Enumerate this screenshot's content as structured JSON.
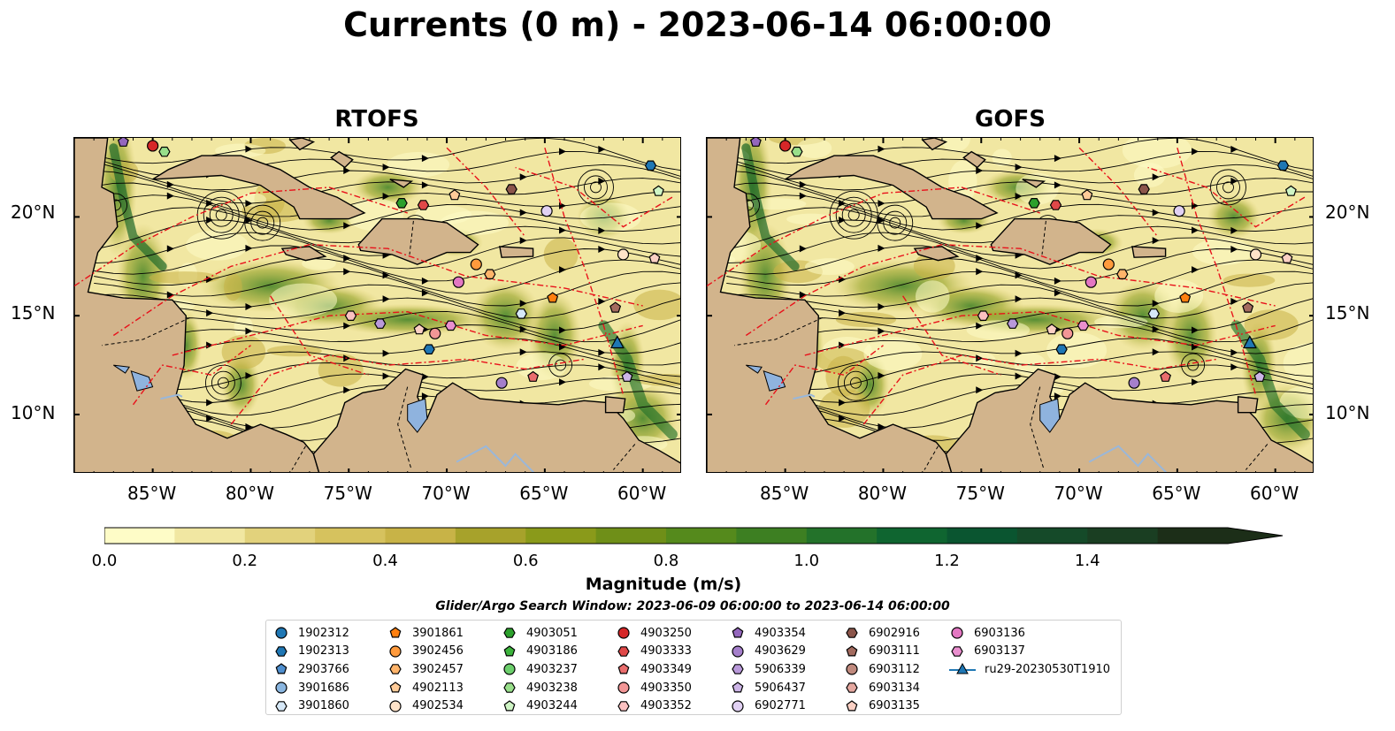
{
  "title": "Currents (0 m) - 2023-06-14 06:00:00",
  "panels": [
    {
      "title": "RTOFS"
    },
    {
      "title": "GOFS"
    }
  ],
  "map_axes": {
    "lon_range": [
      -89,
      -58
    ],
    "lat_range": [
      7,
      24
    ],
    "lat_ticks": [
      "20°N",
      "15°N",
      "10°N"
    ],
    "lon_ticks": [
      "85°W",
      "80°W",
      "75°W",
      "70°W",
      "65°W",
      "60°W"
    ]
  },
  "colorbar": {
    "label": "Magnitude (m/s)",
    "ticks": [
      "0.0",
      "0.2",
      "0.4",
      "0.6",
      "0.8",
      "1.0",
      "1.2",
      "1.4"
    ],
    "range": [
      0,
      1.6
    ],
    "extend": "max",
    "colors": [
      "#fefcc7",
      "#f1e7a2",
      "#e2d27c",
      "#d6c25e",
      "#c8b347",
      "#a7a22b",
      "#8a9a1a",
      "#6f8f18",
      "#558a1c",
      "#3d7f22",
      "#23722a",
      "#0f6530",
      "#0a5530",
      "#154a29",
      "#1a3e22",
      "#1c2e18"
    ]
  },
  "search_window": "Glider/Argo Search Window: 2023-06-09 06:00:00 to 2023-06-14 06:00:00",
  "legend": [
    {
      "label": "1902312",
      "marker": "circle",
      "color": "#1f77b4"
    },
    {
      "label": "1902313",
      "marker": "hexagon",
      "color": "#1f77b4"
    },
    {
      "label": "2903766",
      "marker": "pentagon",
      "color": "#4f8fcf"
    },
    {
      "label": "3901686",
      "marker": "circle",
      "color": "#8ab6e0"
    },
    {
      "label": "3901860",
      "marker": "hexagon",
      "color": "#d6e8f7"
    },
    {
      "label": "3901861",
      "marker": "pentagon",
      "color": "#ff7f0e"
    },
    {
      "label": "3902456",
      "marker": "circle",
      "color": "#ff9a3c"
    },
    {
      "label": "3902457",
      "marker": "hexagon",
      "color": "#ffb46a"
    },
    {
      "label": "4902113",
      "marker": "pentagon",
      "color": "#ffcb98"
    },
    {
      "label": "4902534",
      "marker": "circle",
      "color": "#ffe3c9"
    },
    {
      "label": "4903051",
      "marker": "hexagon",
      "color": "#2ca02c"
    },
    {
      "label": "4903186",
      "marker": "pentagon",
      "color": "#3cb43c"
    },
    {
      "label": "4903237",
      "marker": "circle",
      "color": "#6ccf6c"
    },
    {
      "label": "4903238",
      "marker": "hexagon",
      "color": "#98df8a"
    },
    {
      "label": "4903244",
      "marker": "pentagon",
      "color": "#cff5c5"
    },
    {
      "label": "4903250",
      "marker": "circle",
      "color": "#d62728"
    },
    {
      "label": "4903333",
      "marker": "hexagon",
      "color": "#e04848"
    },
    {
      "label": "4903349",
      "marker": "pentagon",
      "color": "#ea6d6d"
    },
    {
      "label": "4903350",
      "marker": "circle",
      "color": "#f29696"
    },
    {
      "label": "4903352",
      "marker": "hexagon",
      "color": "#fbc1c1"
    },
    {
      "label": "4903354",
      "marker": "pentagon",
      "color": "#9467bd"
    },
    {
      "label": "4903629",
      "marker": "circle",
      "color": "#a57fcb"
    },
    {
      "label": "5906339",
      "marker": "hexagon",
      "color": "#b999da"
    },
    {
      "label": "5906437",
      "marker": "pentagon",
      "color": "#cdb5e7"
    },
    {
      "label": "6902771",
      "marker": "circle",
      "color": "#e1d1f3"
    },
    {
      "label": "6902916",
      "marker": "hexagon",
      "color": "#8c564b"
    },
    {
      "label": "6903111",
      "marker": "pentagon",
      "color": "#a36b5f"
    },
    {
      "label": "6903112",
      "marker": "circle",
      "color": "#c08a7e"
    },
    {
      "label": "6903134",
      "marker": "hexagon",
      "color": "#e5a8a0"
    },
    {
      "label": "6903135",
      "marker": "pentagon",
      "color": "#fbd0c4"
    },
    {
      "label": "6903136",
      "marker": "circle",
      "color": "#e377c2"
    },
    {
      "label": "6903137",
      "marker": "hexagon",
      "color": "#ea8fcf"
    },
    {
      "label": "ru29-20230530T1910",
      "marker": "triangle-line",
      "color": "#1f77b4"
    }
  ],
  "floats": [
    {
      "id": "4903354",
      "lon": -86.5,
      "lat": 23.8
    },
    {
      "id": "4903250",
      "lon": -85.0,
      "lat": 23.6
    },
    {
      "id": "4903238",
      "lon": -84.4,
      "lat": 23.3
    },
    {
      "id": "1902313",
      "lon": -59.6,
      "lat": 22.6
    },
    {
      "id": "4903244",
      "lon": -59.2,
      "lat": 21.3
    },
    {
      "id": "6902916",
      "lon": -66.7,
      "lat": 21.4
    },
    {
      "id": "4902113",
      "lon": -69.6,
      "lat": 21.1
    },
    {
      "id": "4903051",
      "lon": -72.3,
      "lat": 20.7
    },
    {
      "id": "4903333",
      "lon": -71.2,
      "lat": 20.6
    },
    {
      "id": "6902771",
      "lon": -64.9,
      "lat": 20.3
    },
    {
      "id": "4902534",
      "lon": -61.0,
      "lat": 18.1
    },
    {
      "id": "6903135",
      "lon": -59.4,
      "lat": 17.9
    },
    {
      "id": "3902456",
      "lon": -68.5,
      "lat": 17.6
    },
    {
      "id": "3902457",
      "lon": -67.8,
      "lat": 17.1
    },
    {
      "id": "6903136",
      "lon": -69.4,
      "lat": 16.7
    },
    {
      "id": "3901861",
      "lon": -64.6,
      "lat": 15.9
    },
    {
      "id": "6903111",
      "lon": -61.4,
      "lat": 15.4
    },
    {
      "id": "3901860",
      "lon": -66.2,
      "lat": 15.1
    },
    {
      "id": "4903352",
      "lon": -74.9,
      "lat": 15.0
    },
    {
      "id": "5906339",
      "lon": -73.4,
      "lat": 14.6
    },
    {
      "id": "6903137",
      "lon": -69.8,
      "lat": 14.5
    },
    {
      "id": "6903135",
      "lon": -71.4,
      "lat": 14.3
    },
    {
      "id": "4903350",
      "lon": -70.6,
      "lat": 14.1
    },
    {
      "id": "1902313",
      "lon": -70.9,
      "lat": 13.3
    },
    {
      "id": "ru29-20230530T1910",
      "lon": -61.3,
      "lat": 13.6
    },
    {
      "id": "4903629",
      "lon": -67.2,
      "lat": 11.6
    },
    {
      "id": "4903349",
      "lon": -65.6,
      "lat": 11.9
    },
    {
      "id": "5906437",
      "lon": -60.8,
      "lat": 11.9
    }
  ]
}
